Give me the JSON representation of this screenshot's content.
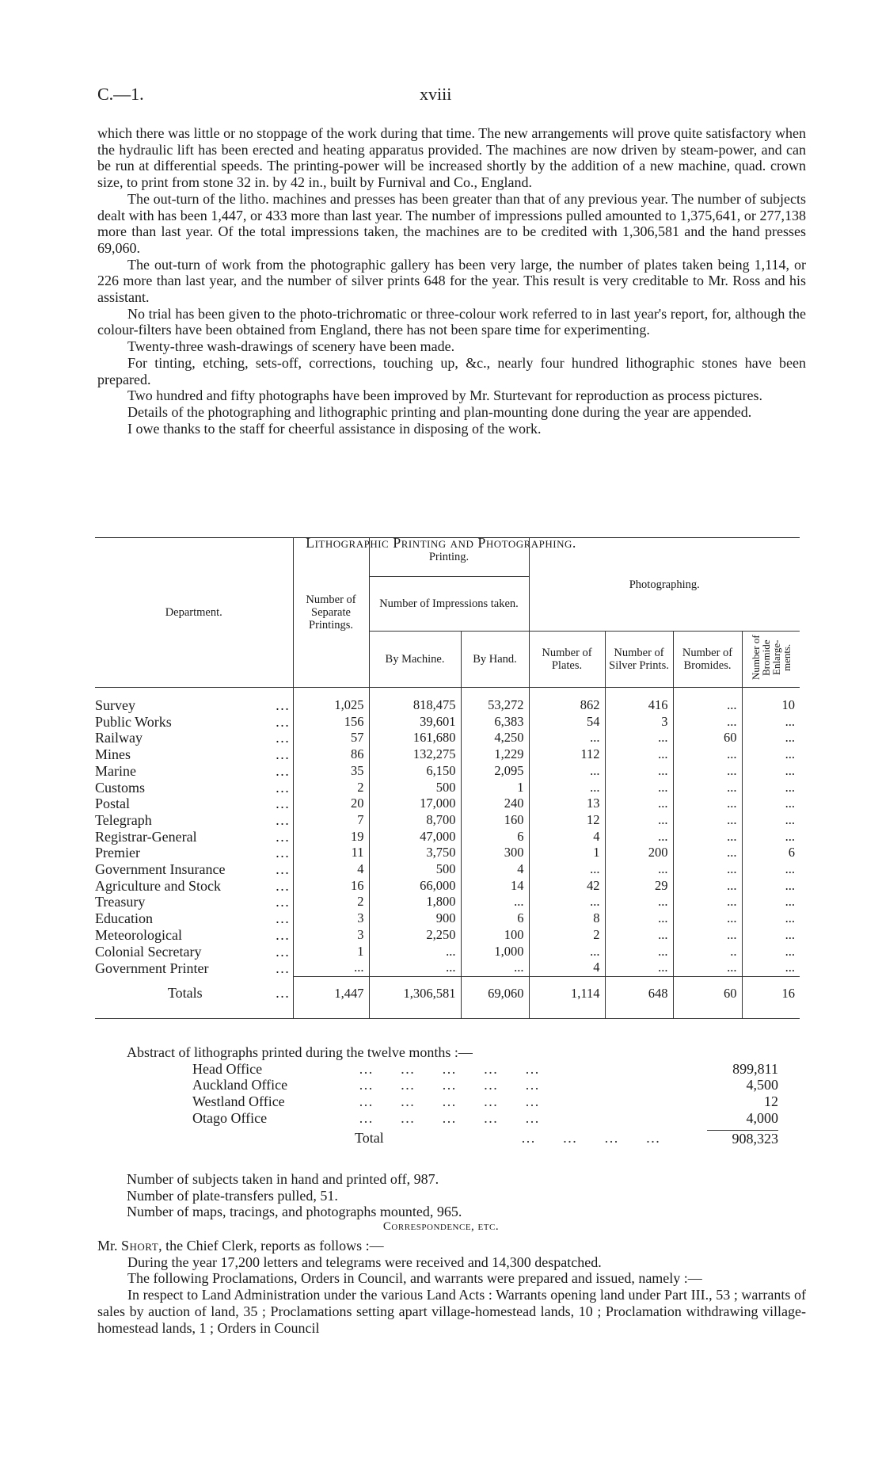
{
  "header": {
    "ref": "C.—1.",
    "page": "xviii"
  },
  "paragraphs": [
    "which there was little or no stoppage of the work during that time. The new arrangements will prove quite satisfactory when the hydraulic lift has been erected and heating apparatus provided. The machines are now driven by steam-power, and can be run at differential speeds. The printing-power will be increased shortly by the addition of a new machine, quad. crown size, to print from stone 32 in. by 42 in., built by Furnival and Co., England.",
    "The out-turn of the litho. machines and presses has been greater than that of any previous year. The number of subjects dealt with has been 1,447, or 433 more than last year. The number of impressions pulled amounted to 1,375,641, or 277,138 more than last year. Of the total impressions taken, the machines are to be credited with 1,306,581 and the hand presses 69,060.",
    "The out-turn of work from the photographic gallery has been very large, the number of plates taken being 1,114, or 226 more than last year, and the number of silver prints 648 for the year. This result is very creditable to Mr. Ross and his assistant.",
    "No trial has been given to the photo-trichromatic or three-colour work referred to in last year's report, for, although the colour-filters have been obtained from England, there has not been spare time for experimenting.",
    "Twenty-three wash-drawings of scenery have been made.",
    "For tinting, etching, sets-off, corrections, touching up, &c., nearly four hundred lithographic stones have been prepared.",
    "Two hundred and fifty photographs have been improved by Mr. Sturtevant for reproduction as process pictures.",
    "Details of the photographing and lithographic printing and plan-mounting done during the year are appended.",
    "I owe thanks to the staff for cheerful assistance in disposing of the work."
  ],
  "table": {
    "title": "Lithographic Printing and Photographing.",
    "headers": {
      "department": "Department.",
      "separate": "Number of Separate Printings.",
      "printing": "Printing.",
      "impressions": "Number of Impressions taken.",
      "machine": "By Machine.",
      "hand": "By Hand.",
      "photographing": "Photographing.",
      "plates": "Number of Plates.",
      "silver": "Number of Silver Prints.",
      "bromides": "Number of Bromides.",
      "enlargements": "Number of Bromide Enlarge-ments."
    },
    "rows": [
      [
        "Survey",
        "1,025",
        "818,475",
        "53,272",
        "862",
        "416",
        "...",
        "10"
      ],
      [
        "Public Works",
        "156",
        "39,601",
        "6,383",
        "54",
        "3",
        "...",
        "..."
      ],
      [
        "Railway",
        "57",
        "161,680",
        "4,250",
        "...",
        "...",
        "60",
        "..."
      ],
      [
        "Mines",
        "86",
        "132,275",
        "1,229",
        "112",
        "...",
        "...",
        "..."
      ],
      [
        "Marine",
        "35",
        "6,150",
        "2,095",
        "...",
        "...",
        "...",
        "..."
      ],
      [
        "Customs",
        "2",
        "500",
        "1",
        "...",
        "...",
        "...",
        "..."
      ],
      [
        "Postal",
        "20",
        "17,000",
        "240",
        "13",
        "...",
        "...",
        "..."
      ],
      [
        "Telegraph",
        "7",
        "8,700",
        "160",
        "12",
        "...",
        "...",
        "..."
      ],
      [
        "Registrar-General",
        "19",
        "47,000",
        "6",
        "4",
        "...",
        "...",
        "..."
      ],
      [
        "Premier",
        "11",
        "3,750",
        "300",
        "1",
        "200",
        "...",
        "6"
      ],
      [
        "Government Insurance",
        "4",
        "500",
        "4",
        "...",
        "...",
        "...",
        "..."
      ],
      [
        "Agriculture and Stock",
        "16",
        "66,000",
        "14",
        "42",
        "29",
        "...",
        "..."
      ],
      [
        "Treasury",
        "2",
        "1,800",
        "...",
        "...",
        "...",
        "...",
        "..."
      ],
      [
        "Education",
        "3",
        "900",
        "6",
        "8",
        "...",
        "...",
        "..."
      ],
      [
        "Meteorological",
        "3",
        "2,250",
        "100",
        "2",
        "...",
        "...",
        "..."
      ],
      [
        "Colonial Secretary",
        "1",
        "...",
        "1,000",
        "...",
        "...",
        "..",
        "..."
      ],
      [
        "Government Printer",
        "...",
        "...",
        "...",
        "4",
        "...",
        "...",
        "..."
      ]
    ],
    "totals": [
      "Totals",
      "1,447",
      "1,306,581",
      "69,060",
      "1,114",
      "648",
      "60",
      "16"
    ]
  },
  "abstract": {
    "intro": "Abstract of lithographs printed during the twelve months :—",
    "items": [
      [
        "Head Office",
        "899,811"
      ],
      [
        "Auckland Office",
        "4,500"
      ],
      [
        "Westland Office",
        "12"
      ],
      [
        "Otago Office",
        "4,000"
      ]
    ],
    "total_label": "Total",
    "total": "908,323"
  },
  "summary": [
    "Number of subjects taken in hand and printed off, 987.",
    "Number of plate-transfers pulled, 51.",
    "Number of maps, tracings, and photographs mounted, 965."
  ],
  "correspondence": {
    "title": "Correspondence, etc.",
    "intro_name": "Short",
    "intro_pre": "Mr. ",
    "intro_post": ", the Chief Clerk, reports as follows :—",
    "paragraphs": [
      "During the year 17,200 letters and telegrams were received and 14,300 despatched.",
      "The following Proclamations, Orders in Council, and warrants were prepared and issued, namely :—",
      "In respect to Land Administration under the various Land Acts : Warrants opening land under Part III., 53 ; warrants of sales by auction of land, 35 ; Proclamations setting apart village-homestead lands, 10 ; Proclamation withdrawing village-homestead lands, 1 ; Orders in Council"
    ]
  }
}
